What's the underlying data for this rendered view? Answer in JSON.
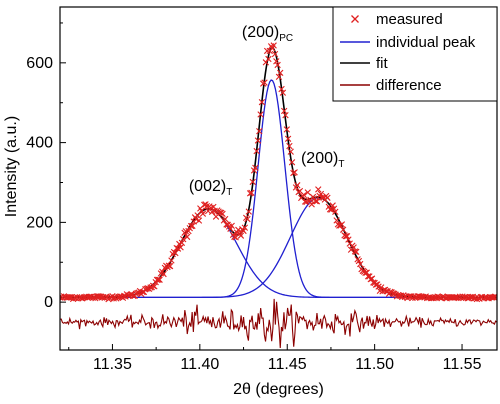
{
  "chart_data": {
    "type": "line",
    "xlabel": "2θ (degrees)",
    "ylabel": "Intensity (a.u.)",
    "xlim": [
      11.32,
      11.57
    ],
    "ylim": [
      -120,
      740
    ],
    "x_ticks": [
      "11.35",
      "11.40",
      "11.45",
      "11.50",
      "11.55"
    ],
    "y_ticks": [
      "0",
      "200",
      "400",
      "600"
    ],
    "grid": false,
    "legend_position": "top-right",
    "legend": {
      "measured": "measured",
      "individual_peak": "individual peak",
      "fit": "fit",
      "difference": "difference"
    },
    "annotations": {
      "peak_002T": {
        "main": "(002)",
        "sub": "T",
        "x": 11.405
      },
      "peak_200PC": {
        "main": "(200)",
        "sub": "PC",
        "x": 11.441
      },
      "peak_200T": {
        "main": "(200)",
        "sub": "T",
        "x": 11.468
      }
    },
    "peaks": [
      {
        "name": "(002)T",
        "center": 11.405,
        "height": 222,
        "fwhm": 0.038
      },
      {
        "name": "(200)PC",
        "center": 11.441,
        "height": 545,
        "fwhm": 0.018
      },
      {
        "name": "(200)T",
        "center": 11.468,
        "height": 250,
        "fwhm": 0.038
      }
    ],
    "background": 12,
    "difference_offset": -50,
    "colors": {
      "measured": "#e02020",
      "individual_peak": "#2020d0",
      "fit": "#000000",
      "difference": "#8b0000"
    }
  }
}
